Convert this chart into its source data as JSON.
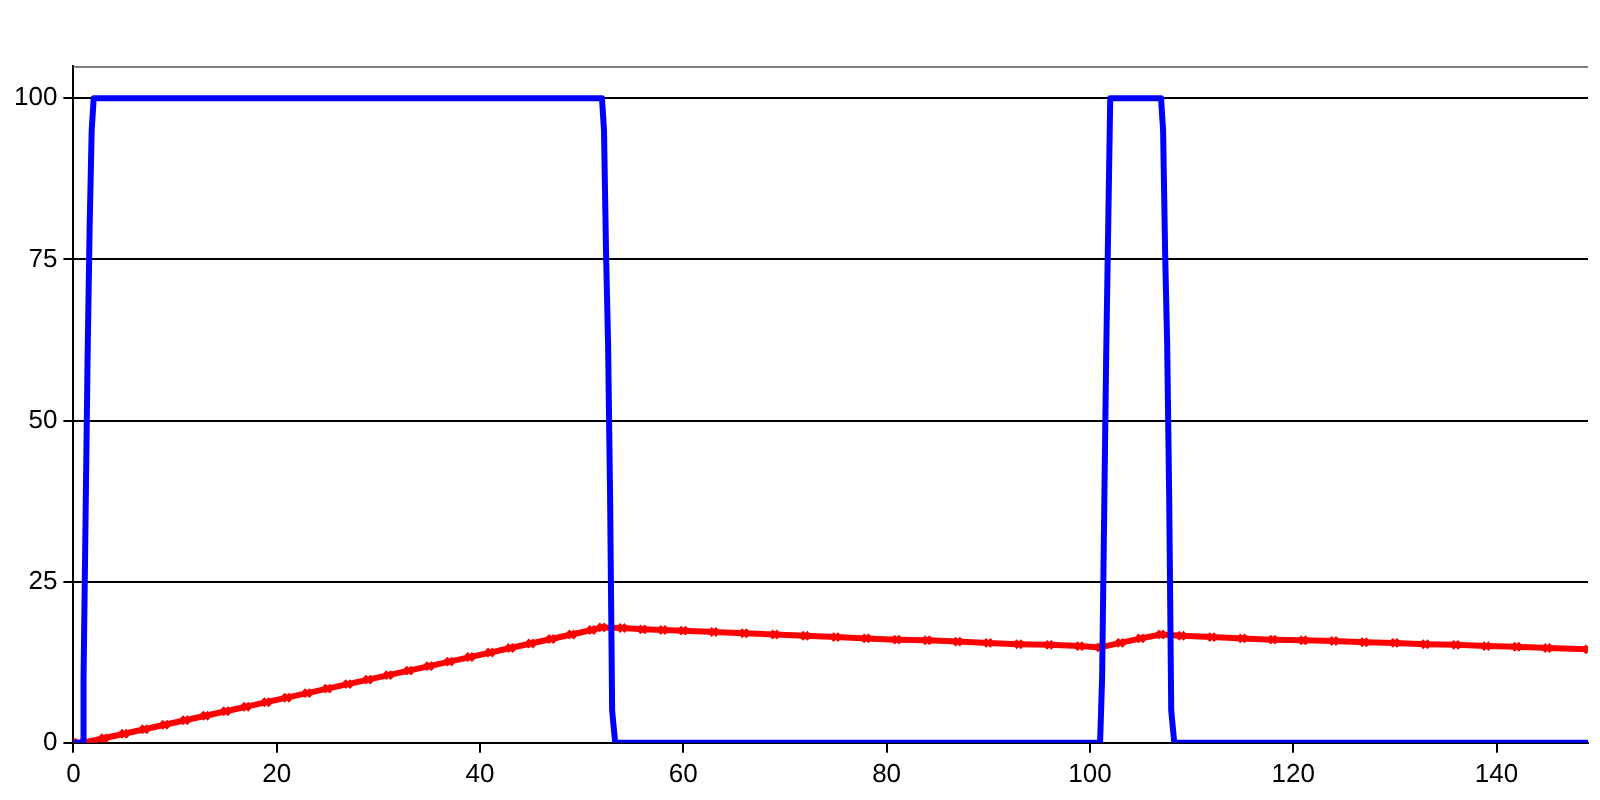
{
  "chart_data": {
    "type": "line",
    "xlim": [
      0,
      149
    ],
    "ylim": [
      0,
      105
    ],
    "xticks": [
      0,
      20,
      40,
      60,
      80,
      100,
      120,
      140
    ],
    "yticks": [
      0,
      25,
      50,
      75,
      100
    ],
    "grid": "y",
    "legend": false,
    "series": [
      {
        "color": "#0000ff",
        "marker": "none",
        "x": [
          0,
          0.9,
          1.0,
          1.2,
          1.4,
          1.6,
          1.8,
          2.0,
          52,
          52.2,
          52.4,
          52.6,
          52.8,
          53.0,
          53.3,
          101,
          101.2,
          101.4,
          101.6,
          101.8,
          102.0,
          107,
          107.2,
          107.4,
          107.6,
          107.8,
          108.0,
          108.3,
          149
        ],
        "values": [
          0,
          0,
          10,
          35,
          60,
          80,
          95,
          100,
          100,
          95,
          76,
          62,
          38,
          5,
          0,
          0,
          10,
          35,
          60,
          80,
          100,
          100,
          95,
          76,
          62,
          38,
          5,
          0,
          0
        ]
      },
      {
        "color": "#ff0000",
        "marker": "cross",
        "x": [
          0,
          1,
          3,
          5,
          7,
          9,
          11,
          13,
          15,
          17,
          19,
          21,
          23,
          25,
          27,
          29,
          31,
          33,
          35,
          37,
          39,
          41,
          43,
          45,
          47,
          49,
          51,
          52,
          54,
          56,
          58,
          60,
          63,
          66,
          69,
          72,
          75,
          78,
          81,
          84,
          87,
          90,
          93,
          96,
          99,
          101,
          103,
          105,
          107,
          109,
          112,
          115,
          118,
          121,
          124,
          127,
          130,
          133,
          136,
          139,
          142,
          145,
          149
        ],
        "values": [
          0,
          0,
          0.7,
          1.4,
          2.1,
          2.8,
          3.5,
          4.2,
          4.9,
          5.6,
          6.3,
          7,
          7.7,
          8.4,
          9.1,
          9.8,
          10.5,
          11.2,
          11.9,
          12.6,
          13.3,
          14,
          14.7,
          15.4,
          16.1,
          16.8,
          17.5,
          17.9,
          17.8,
          17.6,
          17.5,
          17.4,
          17.2,
          17,
          16.8,
          16.6,
          16.4,
          16.2,
          16,
          15.9,
          15.7,
          15.5,
          15.3,
          15.2,
          15,
          14.8,
          15.5,
          16.2,
          16.8,
          16.6,
          16.4,
          16.2,
          16,
          15.9,
          15.8,
          15.6,
          15.5,
          15.3,
          15.2,
          15,
          14.9,
          14.7,
          14.5
        ]
      }
    ]
  }
}
